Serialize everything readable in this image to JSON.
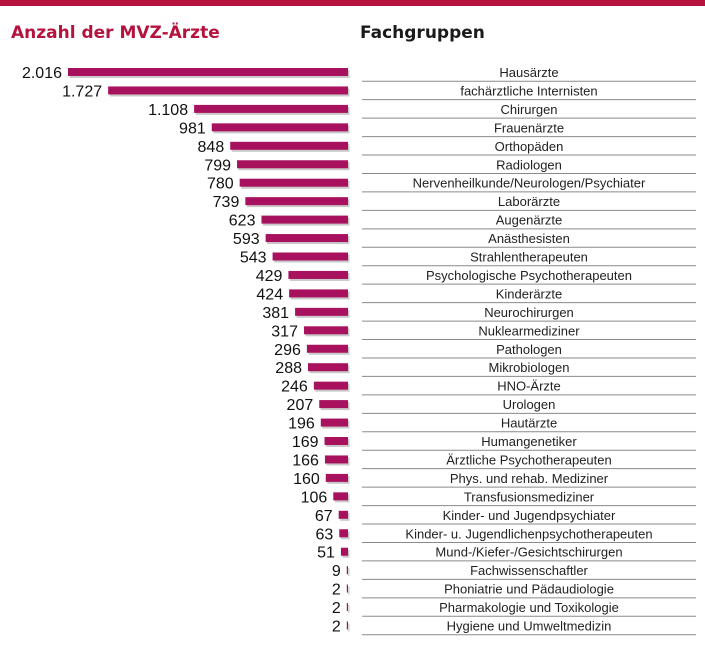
{
  "colors": {
    "accent": "#b5133d",
    "bar": "#a8115e",
    "bar_shadow": "#c9c9c9",
    "rule": "#8a8a8a"
  },
  "chart_data": {
    "type": "bar",
    "orientation": "horizontal",
    "title_left": "Anzahl der MVZ-Ärzte",
    "title_right": "Fachgruppen",
    "xlim": [
      0,
      2016
    ],
    "categories": [
      "Hausärzte",
      "fachärztliche Internisten",
      "Chirurgen",
      "Frauenärzte",
      "Orthopäden",
      "Radiologen",
      "Nervenheilkunde/Neurologen/Psychiater",
      "Laborärzte",
      "Augenärzte",
      "Anästhesisten",
      "Strahlentherapeuten",
      "Psychologische Psychotherapeuten",
      "Kinderärzte",
      "Neurochirurgen",
      "Nuklearmediziner",
      "Pathologen",
      "Mikrobiologen",
      "HNO-Ärzte",
      "Urologen",
      "Hautärzte",
      "Humangenetiker",
      "Ärztliche Psychotherapeuten",
      "Phys. und rehab. Mediziner",
      "Transfusionsmediziner",
      "Kinder- und Jugendpsychiater",
      "Kinder- u. Jugendlichenpsychotherapeuten",
      "Mund-/Kiefer-/Gesichtschirurgen",
      "Fachwissenschaftler",
      "Phoniatrie und Pädaudiologie",
      "Pharmakologie und Toxikologie",
      "Hygiene und Umweltmedizin"
    ],
    "values": [
      2016,
      1727,
      1108,
      981,
      848,
      799,
      780,
      739,
      623,
      593,
      543,
      429,
      424,
      381,
      317,
      296,
      288,
      246,
      207,
      196,
      169,
      166,
      160,
      106,
      67,
      63,
      51,
      9,
      2,
      2,
      2
    ],
    "value_labels": [
      "2.016",
      "1.727",
      "1.108",
      "981",
      "848",
      "799",
      "780",
      "739",
      "623",
      "593",
      "543",
      "429",
      "424",
      "381",
      "317",
      "296",
      "288",
      "246",
      "207",
      "196",
      "169",
      "166",
      "160",
      "106",
      "67",
      "63",
      "51",
      "9",
      "2",
      "2",
      "2"
    ]
  }
}
